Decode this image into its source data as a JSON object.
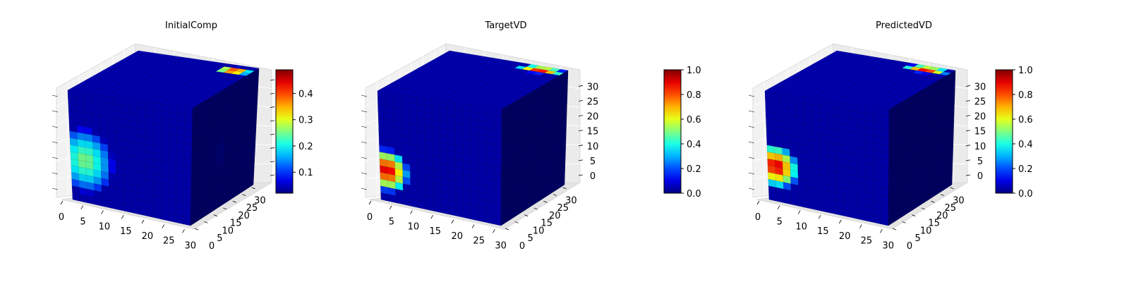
{
  "chart_data": [
    {
      "type": "voxel3d",
      "title": "InitialComp",
      "axes": {
        "x": {
          "range": [
            0,
            32
          ],
          "ticks": [
            0,
            5,
            10,
            15,
            20,
            25,
            30
          ]
        },
        "y": {
          "range": [
            0,
            32
          ],
          "ticks": [
            0,
            5,
            10,
            15,
            20,
            25,
            30
          ]
        },
        "z": {
          "range": [
            0,
            32
          ],
          "ticks": [],
          "tick_labels_shown": false
        }
      },
      "grid": true,
      "colormap": "jet",
      "colorbar": {
        "min": 0.02,
        "max": 0.49,
        "ticks": [
          0.1,
          0.2,
          0.3,
          0.4
        ],
        "labels": [
          "0.1",
          "0.2",
          "0.3",
          "0.4"
        ]
      },
      "features": [
        {
          "face": "front",
          "u": 0.12,
          "v": 0.62,
          "ru": 0.24,
          "rv": 0.3,
          "peak": 0.27
        },
        {
          "face": "top",
          "u": 0.86,
          "v": 0.88,
          "ru": 0.14,
          "rv": 0.09,
          "peak": 0.49
        },
        {
          "face": "side",
          "u": 0.45,
          "v": 0.55,
          "ru": 0.12,
          "rv": 0.25,
          "peak": 0.05
        }
      ]
    },
    {
      "type": "voxel3d",
      "title": "TargetVD",
      "axes": {
        "x": {
          "range": [
            0,
            32
          ],
          "ticks": [
            0,
            5,
            10,
            15,
            20,
            25,
            30
          ]
        },
        "y": {
          "range": [
            0,
            32
          ],
          "ticks": [
            0,
            5,
            10,
            15,
            20,
            25,
            30
          ]
        },
        "z": {
          "range": [
            0,
            32
          ],
          "ticks": [
            0,
            5,
            10,
            15,
            20,
            25,
            30
          ]
        }
      },
      "grid": true,
      "colormap": "jet",
      "colorbar": {
        "min": 0.0,
        "max": 1.0,
        "ticks": [
          0.0,
          0.2,
          0.4,
          0.6,
          0.8,
          1.0
        ],
        "labels": [
          "0.0",
          "0.2",
          "0.4",
          "0.6",
          "0.8",
          "1.0"
        ]
      },
      "features": [
        {
          "face": "front",
          "u": 0.06,
          "v": 0.72,
          "ru": 0.18,
          "rv": 0.2,
          "peak": 1.0
        },
        {
          "face": "top",
          "u": 0.82,
          "v": 0.92,
          "ru": 0.2,
          "rv": 0.08,
          "peak": 1.0
        }
      ]
    },
    {
      "type": "voxel3d",
      "title": "PredictedVD",
      "axes": {
        "x": {
          "range": [
            0,
            32
          ],
          "ticks": [
            0,
            5,
            10,
            15,
            20,
            25,
            30
          ]
        },
        "y": {
          "range": [
            0,
            32
          ],
          "ticks": [
            0,
            5,
            10,
            15,
            20,
            25,
            30
          ]
        },
        "z": {
          "range": [
            0,
            32
          ],
          "ticks": [
            0,
            5,
            10,
            15,
            20,
            25,
            30
          ]
        }
      },
      "grid": true,
      "colormap": "jet",
      "colorbar": {
        "min": 0.0,
        "max": 1.0,
        "ticks": [
          0.0,
          0.2,
          0.4,
          0.6,
          0.8,
          1.0
        ],
        "labels": [
          "0.0",
          "0.2",
          "0.4",
          "0.6",
          "0.8",
          "1.0"
        ]
      },
      "features": [
        {
          "face": "front",
          "u": 0.07,
          "v": 0.68,
          "ru": 0.19,
          "rv": 0.2,
          "peak": 1.0
        },
        {
          "face": "top",
          "u": 0.8,
          "v": 0.92,
          "ru": 0.19,
          "rv": 0.08,
          "peak": 1.0
        }
      ]
    }
  ]
}
